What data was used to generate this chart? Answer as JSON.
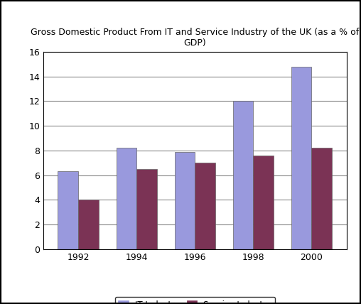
{
  "title": "Gross Domestic Product From IT and Service Industry of the UK (as a % of\nGDP)",
  "years": [
    "1992",
    "1994",
    "1996",
    "1998",
    "2000"
  ],
  "it_values": [
    6.3,
    8.2,
    7.9,
    12.0,
    14.8
  ],
  "service_values": [
    4.0,
    6.5,
    7.0,
    7.6,
    8.2
  ],
  "it_color": "#9999dd",
  "service_color": "#7b3355",
  "ylim": [
    0,
    16
  ],
  "yticks": [
    0,
    2,
    4,
    6,
    8,
    10,
    12,
    14,
    16
  ],
  "legend_it": "IT Industry",
  "legend_service": "Service Industry",
  "bar_width": 0.35,
  "background_color": "#ffffff",
  "title_fontsize": 9.0
}
